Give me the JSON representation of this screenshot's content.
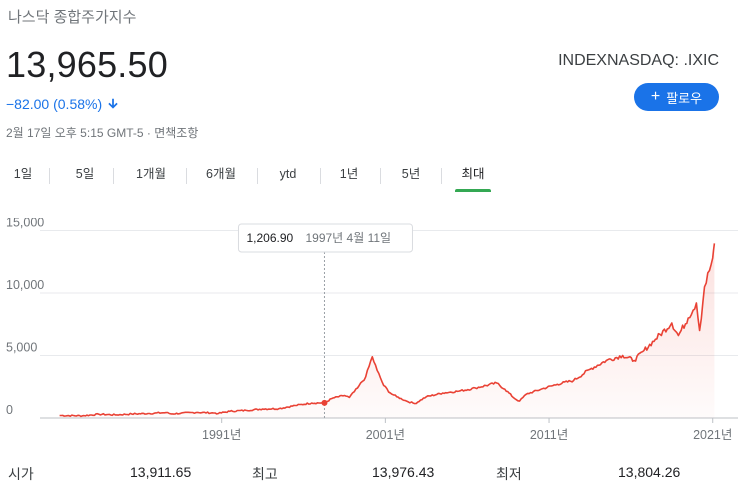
{
  "quote": {
    "title": "나스닥 종합주가지수",
    "price": "13,965.50",
    "change": "−82.00 (0.58%)",
    "timestamp": "2월 17일 오후 5:15 GMT-5 · 면책조항",
    "ticker": "INDEXNASDAQ: .IXIC",
    "follow_label": "팔로우"
  },
  "tabs": [
    {
      "label": "1일"
    },
    {
      "label": "5일"
    },
    {
      "label": "1개월"
    },
    {
      "label": "6개월"
    },
    {
      "label": "ytd"
    },
    {
      "label": "1년"
    },
    {
      "label": "5년"
    },
    {
      "label": "최대",
      "active": true
    }
  ],
  "tooltip": {
    "value": "1,206.90",
    "date": "1997년 4월 11일"
  },
  "colors": {
    "line": "#e94235",
    "accent": "#1a73e8",
    "active_tab": "#34a853"
  },
  "chart_data": {
    "type": "area",
    "y_ticks": [
      "15,000",
      "10,000",
      "5,000",
      "0"
    ],
    "x_ticks": [
      "1991년",
      "2001년",
      "2011년",
      "2021년"
    ],
    "ylim": [
      0,
      16000
    ],
    "xlim": [
      1981,
      2021.2
    ],
    "series": [
      {
        "x": [
          1981.1,
          1982.5,
          1983.5,
          1984.5,
          1985.5,
          1986.5,
          1987.6,
          1987.9,
          1988.5,
          1989.5,
          1990.6,
          1990.8,
          1991.5,
          1992.5,
          1993.5,
          1994.5,
          1995.5,
          1996.5,
          1997.28,
          1997.8,
          1998.5,
          1998.8,
          1999.3,
          1999.8,
          2000.2,
          2000.5,
          2000.9,
          2001.3,
          2001.7,
          2002.3,
          2002.8,
          2003.5,
          2004.5,
          2005.5,
          2006.5,
          2007.8,
          2008.3,
          2008.9,
          2009.2,
          2009.6,
          2010.5,
          2011.5,
          2012.5,
          2013.5,
          2014.5,
          2015.5,
          2016.2,
          2016.8,
          2017.5,
          2018.5,
          2018.9,
          2019.5,
          2020.0,
          2020.2,
          2020.5,
          2020.8,
          2021.0,
          2021.1
        ],
        "values": [
          200,
          180,
          300,
          250,
          320,
          360,
          430,
          330,
          380,
          450,
          400,
          360,
          540,
          610,
          720,
          750,
          1000,
          1200,
          1206.9,
          1600,
          1800,
          1650,
          2400,
          3300,
          4900,
          3800,
          2600,
          2000,
          1700,
          1350,
          1150,
          1700,
          2000,
          2150,
          2400,
          2800,
          2300,
          1550,
          1350,
          1900,
          2300,
          2700,
          3000,
          3900,
          4600,
          5000,
          4600,
          5400,
          6300,
          7600,
          6600,
          8000,
          9200,
          7000,
          10500,
          11800,
          12800,
          13965.5
        ]
      }
    ]
  },
  "stats": [
    {
      "label": "시가",
      "value": "13,911.65"
    },
    {
      "label": "최고",
      "value": "13,976.43"
    },
    {
      "label": "최저",
      "value": "13,804.26"
    }
  ]
}
